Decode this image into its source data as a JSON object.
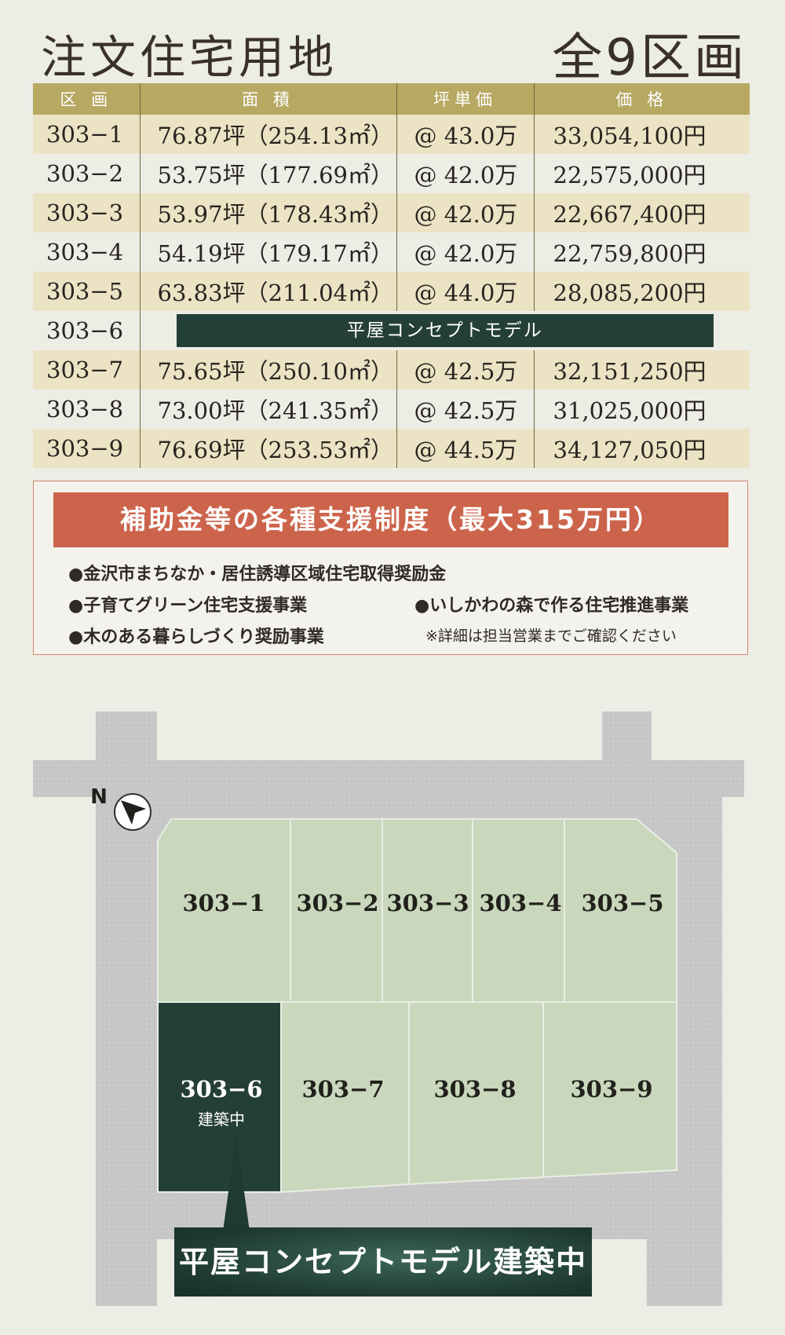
{
  "header": {
    "title": "注文住宅用地",
    "count": "全9区画"
  },
  "table": {
    "columns": [
      "区 画",
      "面 積",
      "坪単価",
      "価 格"
    ],
    "rows": [
      {
        "lot": "303−1",
        "area": "76.87坪（254.13㎡）",
        "unit_price": "@ 43.0万",
        "price": "33,054,100円"
      },
      {
        "lot": "303−2",
        "area": "53.75坪（177.69㎡）",
        "unit_price": "@ 42.0万",
        "price": "22,575,000円"
      },
      {
        "lot": "303−3",
        "area": "53.97坪（178.43㎡）",
        "unit_price": "@ 42.0万",
        "price": "22,667,400円"
      },
      {
        "lot": "303−4",
        "area": "54.19坪（179.17㎡）",
        "unit_price": "@ 42.0万",
        "price": "22,759,800円"
      },
      {
        "lot": "303−5",
        "area": "63.83坪（211.04㎡）",
        "unit_price": "@ 44.0万",
        "price": "28,085,200円"
      },
      {
        "lot": "303−6",
        "model_label": "平屋コンセプトモデル"
      },
      {
        "lot": "303−7",
        "area": "75.65坪（250.10㎡）",
        "unit_price": "@ 42.5万",
        "price": "32,151,250円"
      },
      {
        "lot": "303−8",
        "area": "73.00坪（241.35㎡）",
        "unit_price": "@ 42.5万",
        "price": "31,025,000円"
      },
      {
        "lot": "303−9",
        "area": "76.69坪（253.53㎡）",
        "unit_price": "@ 44.5万",
        "price": "34,127,050円"
      }
    ]
  },
  "subsidy": {
    "title": "補助金等の各種支援制度（最大315万円）",
    "items": [
      "●金沢市まちなか・居住誘導区域住宅取得奨励金",
      "●子育てグリーン住宅支援事業",
      "●いしかわの森で作る住宅推進事業",
      "●木のある暮らしづくり奨励事業"
    ],
    "note": "※詳細は担当営業までご確認ください"
  },
  "map": {
    "north": "N",
    "lots": [
      "303−1",
      "303−2",
      "303−3",
      "303−4",
      "303−5",
      "303−6",
      "303−7",
      "303−8",
      "303−9"
    ],
    "lot6_status": "建築中",
    "banner": "平屋コンセプトモデル建築中",
    "colors": {
      "lot": "#c9d7bc",
      "model_lot": "#243f37",
      "road": "#c5c6c5",
      "background": "#ecede5"
    }
  }
}
